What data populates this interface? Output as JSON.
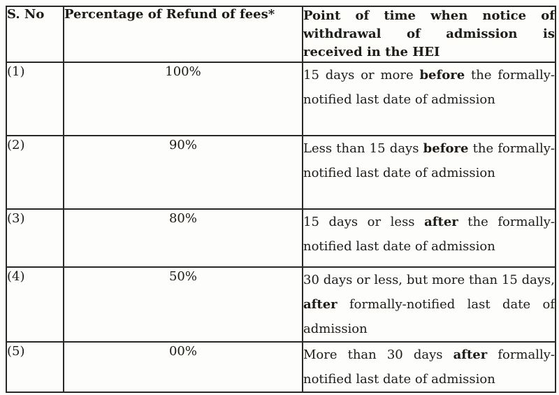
{
  "document": {
    "type": "scanned-table",
    "background_color": "#fdfdfc",
    "border_color": "#2b2925",
    "text_color": "#1e1b17"
  },
  "table": {
    "columns": [
      {
        "label": "S. No"
      },
      {
        "label": "Percentage of Refund of fees*"
      },
      {
        "label": "Point of time when notice of withdrawal of admission is received in the HEI"
      }
    ],
    "rows": [
      {
        "sno": "(1)",
        "percentage": "100%",
        "point": [
          {
            "t": "15 days or more "
          },
          {
            "t": "before",
            "b": true
          },
          {
            "t": " the formally-notified last date of admission"
          }
        ]
      },
      {
        "sno": "(2)",
        "percentage": "90%",
        "point": [
          {
            "t": "Less than 15 days "
          },
          {
            "t": "before",
            "b": true
          },
          {
            "t": " the formally-notified last date of admission"
          }
        ]
      },
      {
        "sno": "(3)",
        "percentage": "80%",
        "point": [
          {
            "t": "15 days or less "
          },
          {
            "t": "after",
            "b": true
          },
          {
            "t": " the formally-notified last date of admission"
          }
        ]
      },
      {
        "sno": "(4)",
        "percentage": "50%",
        "point": [
          {
            "t": "30 days or less, but more than 15 days, "
          },
          {
            "t": "after",
            "b": true
          },
          {
            "t": " formally-notified last date of admission"
          }
        ]
      },
      {
        "sno": "(5)",
        "percentage": "00%",
        "point": [
          {
            "t": "More than 30 days "
          },
          {
            "t": "after",
            "b": true
          },
          {
            "t": " formally-notified last date of admission"
          }
        ]
      }
    ]
  }
}
